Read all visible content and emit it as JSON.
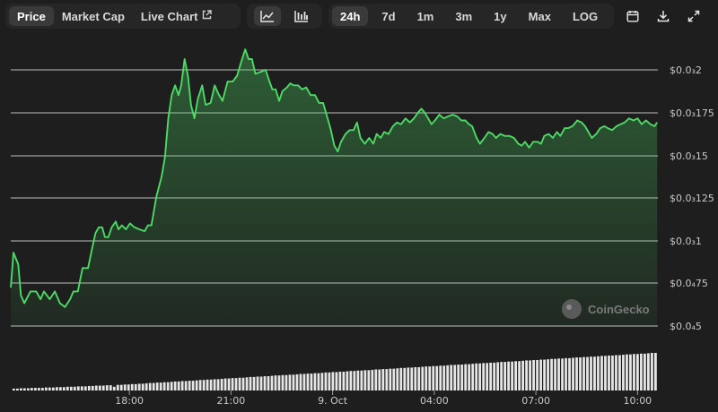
{
  "toolbar": {
    "view_tabs": [
      {
        "label": "Price",
        "active": true
      },
      {
        "label": "Market Cap",
        "active": false
      },
      {
        "label": "Live Chart",
        "active": false
      }
    ],
    "chart_type_icons": [
      "line-chart-icon",
      "candlestick-chart-icon"
    ],
    "range_tabs": [
      {
        "label": "24h",
        "active": true
      },
      {
        "label": "7d",
        "active": false
      },
      {
        "label": "1m",
        "active": false
      },
      {
        "label": "3m",
        "active": false
      },
      {
        "label": "1y",
        "active": false
      },
      {
        "label": "Max",
        "active": false
      },
      {
        "label": "LOG",
        "active": false
      }
    ],
    "action_icons": [
      "calendar-icon",
      "download-icon",
      "fullscreen-icon"
    ]
  },
  "watermark": "CoinGecko",
  "colors": {
    "background": "#1e1e1e",
    "line": "#4cd964",
    "grid": "#d9d9d9",
    "volume": "#e6e6e6",
    "text": "#c8c8c8"
  },
  "chart_data": {
    "type": "area",
    "y_scale": "custom-labeled",
    "y_tick_labels": [
      "$0.0₃2",
      "$0.0₃175",
      "$0.0₃15",
      "$0.0₃125",
      "$0.0₃1",
      "$0.0₄75",
      "$0.0₄5"
    ],
    "x_tick_labels": [
      "18:00",
      "21:00",
      "9. Oct",
      "04:00",
      "07:00",
      "10:00"
    ],
    "x_tick_hours": [
      3.5,
      6.5,
      9.5,
      12.5,
      15.5,
      18.5
    ],
    "x_range_hours": [
      0,
      19.1
    ],
    "y_range_price_e6": [
      0.045,
      0.2
    ],
    "grid": true,
    "series": [
      {
        "points_hours_price_e6": [
          [
            0.0,
            0.0682
          ],
          [
            0.08,
            0.0894
          ],
          [
            0.22,
            0.0824
          ],
          [
            0.3,
            0.0636
          ],
          [
            0.4,
            0.0588
          ],
          [
            0.58,
            0.0659
          ],
          [
            0.75,
            0.0659
          ],
          [
            0.88,
            0.0612
          ],
          [
            0.98,
            0.0659
          ],
          [
            1.15,
            0.0612
          ],
          [
            1.3,
            0.0659
          ],
          [
            1.45,
            0.0588
          ],
          [
            1.6,
            0.0565
          ],
          [
            1.75,
            0.0612
          ],
          [
            1.85,
            0.0659
          ],
          [
            1.98,
            0.0659
          ],
          [
            2.12,
            0.0801
          ],
          [
            2.28,
            0.08
          ],
          [
            2.4,
            0.0918
          ],
          [
            2.5,
            0.1012
          ],
          [
            2.6,
            0.1047
          ],
          [
            2.7,
            0.1047
          ],
          [
            2.78,
            0.0988
          ],
          [
            2.88,
            0.0988
          ],
          [
            2.98,
            0.1047
          ],
          [
            3.1,
            0.1082
          ],
          [
            3.18,
            0.1035
          ],
          [
            3.28,
            0.1059
          ],
          [
            3.4,
            0.1035
          ],
          [
            3.52,
            0.1071
          ],
          [
            3.65,
            0.1047
          ],
          [
            3.8,
            0.1035
          ],
          [
            3.95,
            0.1024
          ],
          [
            4.05,
            0.1059
          ],
          [
            4.15,
            0.1059
          ],
          [
            4.3,
            0.1235
          ],
          [
            4.45,
            0.1353
          ],
          [
            4.55,
            0.1471
          ],
          [
            4.65,
            0.1706
          ],
          [
            4.75,
            0.1847
          ],
          [
            4.85,
            0.1906
          ],
          [
            4.95,
            0.1847
          ],
          [
            5.03,
            0.1906
          ],
          [
            5.13,
            0.2065
          ],
          [
            5.23,
            0.1965
          ],
          [
            5.32,
            0.1788
          ],
          [
            5.42,
            0.1706
          ],
          [
            5.52,
            0.1824
          ],
          [
            5.65,
            0.1906
          ],
          [
            5.75,
            0.1788
          ],
          [
            5.9,
            0.18
          ],
          [
            6.02,
            0.1906
          ],
          [
            6.12,
            0.1859
          ],
          [
            6.25,
            0.1812
          ],
          [
            6.4,
            0.1929
          ],
          [
            6.55,
            0.1929
          ],
          [
            6.68,
            0.1965
          ],
          [
            6.8,
            0.2047
          ],
          [
            6.92,
            0.2124
          ],
          [
            7.02,
            0.2065
          ],
          [
            7.12,
            0.2065
          ],
          [
            7.22,
            0.1976
          ],
          [
            7.38,
            0.1988
          ],
          [
            7.52,
            0.2
          ],
          [
            7.62,
            0.1941
          ],
          [
            7.72,
            0.1882
          ],
          [
            7.82,
            0.1882
          ],
          [
            7.92,
            0.1812
          ],
          [
            8.02,
            0.1871
          ],
          [
            8.15,
            0.1894
          ],
          [
            8.25,
            0.1918
          ],
          [
            8.35,
            0.1906
          ],
          [
            8.48,
            0.1906
          ],
          [
            8.6,
            0.1882
          ],
          [
            8.72,
            0.1894
          ],
          [
            8.85,
            0.1847
          ],
          [
            8.98,
            0.1847
          ],
          [
            9.1,
            0.18
          ],
          [
            9.22,
            0.18
          ],
          [
            9.32,
            0.1729
          ],
          [
            9.45,
            0.1635
          ],
          [
            9.55,
            0.1541
          ],
          [
            9.65,
            0.1506
          ],
          [
            9.75,
            0.1565
          ],
          [
            9.88,
            0.1612
          ],
          [
            10.0,
            0.1635
          ],
          [
            10.12,
            0.1635
          ],
          [
            10.22,
            0.1682
          ],
          [
            10.32,
            0.1588
          ],
          [
            10.45,
            0.1553
          ],
          [
            10.58,
            0.1588
          ],
          [
            10.7,
            0.1553
          ],
          [
            10.8,
            0.1612
          ],
          [
            10.92,
            0.1588
          ],
          [
            11.02,
            0.1624
          ],
          [
            11.15,
            0.1612
          ],
          [
            11.28,
            0.1659
          ],
          [
            11.4,
            0.1682
          ],
          [
            11.52,
            0.1671
          ],
          [
            11.65,
            0.1706
          ],
          [
            11.78,
            0.1682
          ],
          [
            11.9,
            0.1706
          ],
          [
            12.02,
            0.1741
          ],
          [
            12.12,
            0.1765
          ],
          [
            12.22,
            0.1741
          ],
          [
            12.32,
            0.1706
          ],
          [
            12.42,
            0.1671
          ],
          [
            12.52,
            0.1694
          ],
          [
            12.65,
            0.1729
          ],
          [
            12.78,
            0.1706
          ],
          [
            12.9,
            0.1718
          ],
          [
            13.05,
            0.1729
          ],
          [
            13.18,
            0.1718
          ],
          [
            13.3,
            0.1694
          ],
          [
            13.42,
            0.1694
          ],
          [
            13.52,
            0.1671
          ],
          [
            13.62,
            0.1659
          ],
          [
            13.75,
            0.1588
          ],
          [
            13.85,
            0.1553
          ],
          [
            13.98,
            0.1588
          ],
          [
            14.1,
            0.1624
          ],
          [
            14.22,
            0.1612
          ],
          [
            14.32,
            0.1588
          ],
          [
            14.45,
            0.1612
          ],
          [
            14.58,
            0.16
          ],
          [
            14.72,
            0.16
          ],
          [
            14.85,
            0.1588
          ],
          [
            14.98,
            0.1553
          ],
          [
            15.08,
            0.1541
          ],
          [
            15.18,
            0.1565
          ],
          [
            15.3,
            0.1529
          ],
          [
            15.42,
            0.1565
          ],
          [
            15.55,
            0.1565
          ],
          [
            15.65,
            0.1553
          ],
          [
            15.75,
            0.16
          ],
          [
            15.88,
            0.1612
          ],
          [
            16.0,
            0.1588
          ],
          [
            16.12,
            0.1624
          ],
          [
            16.22,
            0.16
          ],
          [
            16.35,
            0.1647
          ],
          [
            16.45,
            0.1647
          ],
          [
            16.58,
            0.1659
          ],
          [
            16.72,
            0.1694
          ],
          [
            16.85,
            0.1682
          ],
          [
            16.95,
            0.1659
          ],
          [
            17.05,
            0.1624
          ],
          [
            17.15,
            0.1588
          ],
          [
            17.28,
            0.1612
          ],
          [
            17.4,
            0.1647
          ],
          [
            17.52,
            0.1659
          ],
          [
            17.62,
            0.1647
          ],
          [
            17.75,
            0.1635
          ],
          [
            17.88,
            0.1659
          ],
          [
            18.0,
            0.1671
          ],
          [
            18.12,
            0.1682
          ],
          [
            18.25,
            0.1706
          ],
          [
            18.38,
            0.1694
          ],
          [
            18.5,
            0.1706
          ],
          [
            18.62,
            0.1671
          ],
          [
            18.75,
            0.1694
          ],
          [
            18.88,
            0.1671
          ],
          [
            19.0,
            0.1659
          ],
          [
            19.08,
            0.1682
          ]
        ]
      }
    ],
    "volume": {
      "unit": "relative",
      "values": [
        0.05,
        0.05,
        0.06,
        0.06,
        0.06,
        0.07,
        0.07,
        0.07,
        0.07,
        0.08,
        0.08,
        0.08,
        0.09,
        0.09,
        0.09,
        0.1,
        0.1,
        0.1,
        0.11,
        0.11,
        0.11,
        0.12,
        0.12,
        0.13,
        0.13,
        0.13,
        0.14,
        0.14,
        0.1,
        0.15,
        0.15,
        0.16,
        0.16,
        0.17,
        0.17,
        0.18,
        0.18,
        0.19,
        0.2,
        0.2,
        0.21,
        0.21,
        0.22,
        0.22,
        0.23,
        0.24,
        0.24,
        0.25,
        0.25,
        0.26,
        0.26,
        0.27,
        0.28,
        0.28,
        0.29,
        0.29,
        0.3,
        0.3,
        0.31,
        0.32,
        0.32,
        0.33,
        0.33,
        0.34,
        0.34,
        0.35,
        0.36,
        0.36,
        0.37,
        0.37,
        0.38,
        0.38,
        0.39,
        0.4,
        0.4,
        0.41,
        0.41,
        0.42,
        0.42,
        0.43,
        0.44,
        0.44,
        0.45,
        0.45,
        0.46,
        0.46,
        0.47,
        0.48,
        0.48,
        0.49,
        0.49,
        0.5,
        0.5,
        0.51,
        0.52,
        0.52,
        0.53,
        0.53,
        0.54,
        0.54,
        0.55,
        0.56,
        0.56,
        0.57,
        0.57,
        0.58,
        0.58,
        0.59,
        0.6,
        0.6,
        0.61,
        0.61,
        0.62,
        0.62,
        0.63,
        0.64,
        0.64,
        0.65,
        0.65,
        0.66,
        0.66,
        0.67,
        0.68,
        0.68,
        0.69,
        0.69,
        0.7,
        0.7,
        0.71,
        0.72,
        0.72,
        0.73,
        0.73,
        0.74,
        0.74,
        0.75,
        0.76,
        0.76,
        0.77,
        0.77,
        0.78,
        0.78,
        0.79,
        0.8,
        0.8,
        0.81,
        0.81,
        0.82,
        0.82,
        0.83,
        0.84,
        0.84,
        0.85,
        0.85,
        0.86,
        0.86,
        0.87,
        0.88,
        0.88,
        0.89,
        0.89,
        0.9,
        0.9,
        0.91,
        0.92,
        0.92,
        0.93,
        0.93,
        0.94,
        0.94,
        0.95,
        0.96,
        0.96,
        0.97,
        0.97,
        0.98,
        0.98,
        0.99,
        1.0,
        1.0
      ]
    }
  }
}
